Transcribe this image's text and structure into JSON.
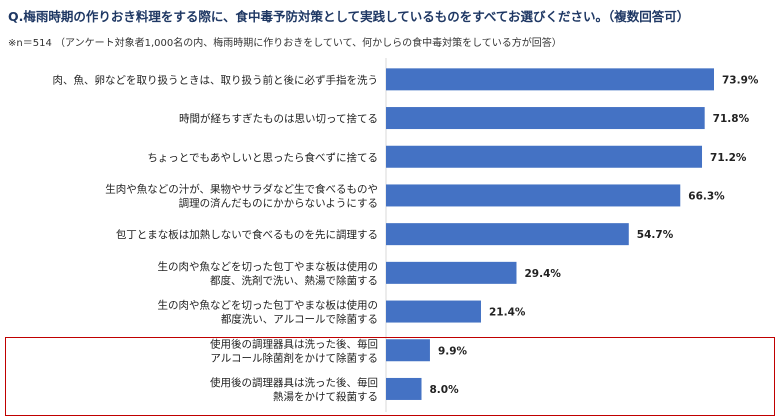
{
  "header": {
    "title": "Q.梅雨時期の作りおき料理をする際に、食中毒予防対策として実践しているものをすべてお選びください。（複数回答可）",
    "note": "※n＝514 （アンケート対象者1,000名の内、梅雨時期に作りおきをしていて、何かしらの食中毒対策をしている方が回答）"
  },
  "colors": {
    "bar": "#4472c4",
    "title": "#1f3864",
    "highlight_border": "#c00000"
  },
  "chart_data": {
    "type": "bar",
    "orientation": "horizontal",
    "unit": "%",
    "categories": [
      [
        "肉、魚、卵などを取り扱うときは、取り扱う前と後に必ず手指を洗う"
      ],
      [
        "時間が経ちすぎたものは思い切って捨てる"
      ],
      [
        "ちょっとでもあやしいと思ったら食べずに捨てる"
      ],
      [
        "生肉や魚などの汁が、果物やサラダなど生で食べるものや",
        "調理の済んだものにかからないようにする"
      ],
      [
        "包丁とまな板は加熱しないで食べるものを先に調理する"
      ],
      [
        "生の肉や魚などを切った包丁やまな板は使用の",
        "都度、洗剤で洗い、熱湯で除菌する"
      ],
      [
        "生の肉や魚などを切った包丁やまな板は使用の",
        "都度洗い、アルコールで除菌する"
      ],
      [
        "使用後の調理器具は洗った後、毎回",
        "アルコール除菌剤をかけて除菌する"
      ],
      [
        "使用後の調理器具は洗った後、毎回",
        "熱湯をかけて殺菌する"
      ]
    ],
    "values": [
      73.9,
      71.8,
      71.2,
      66.3,
      54.7,
      29.4,
      21.4,
      9.9,
      8.0
    ],
    "value_labels": [
      "73.9%",
      "71.8%",
      "71.2%",
      "66.3%",
      "54.7%",
      "29.4%",
      "21.4%",
      "9.9%",
      "8.0%"
    ],
    "xlim": [
      0,
      80
    ],
    "grid": false,
    "highlighted_categories": [
      7,
      8
    ]
  }
}
